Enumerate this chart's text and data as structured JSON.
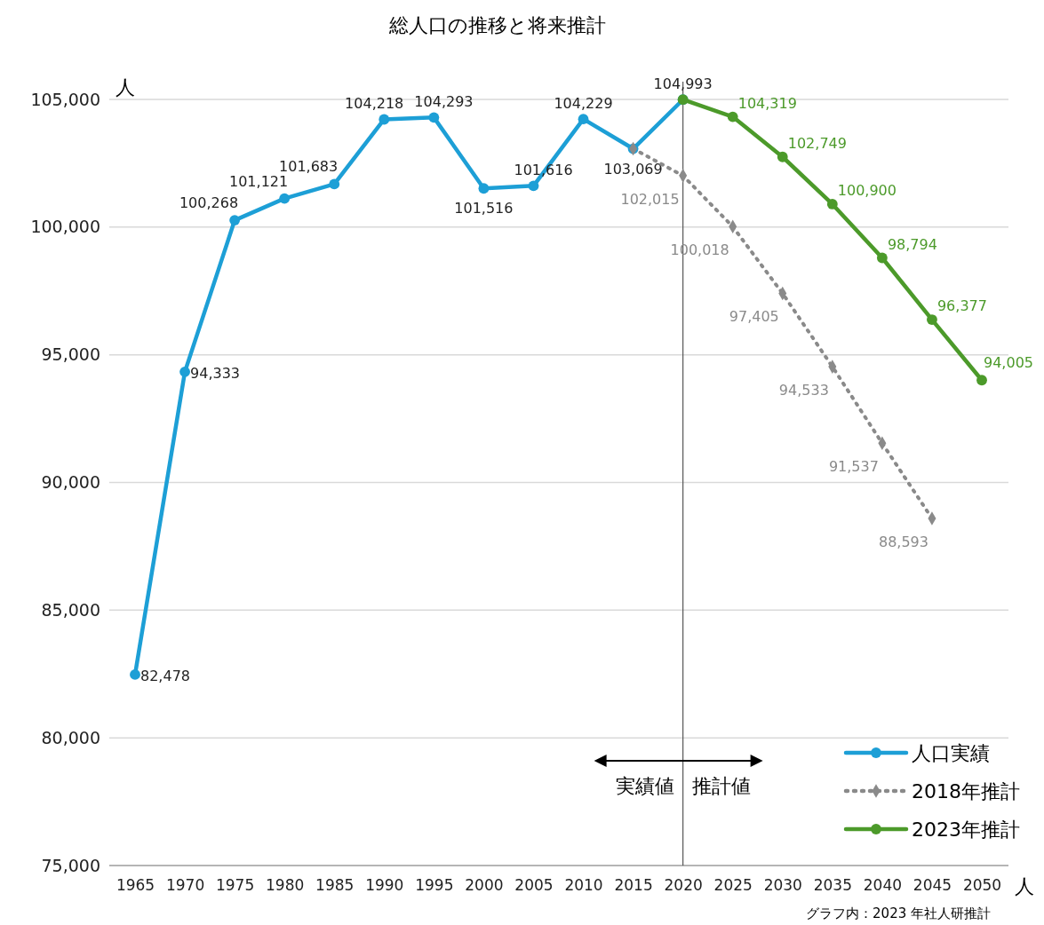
{
  "chart_data": {
    "type": "line",
    "title": "総人口の推移と将来推計",
    "ylabel": "人",
    "xlabel": "人",
    "categories": [
      "1965",
      "1970",
      "1975",
      "1980",
      "1985",
      "1990",
      "1995",
      "2000",
      "2005",
      "2010",
      "2015",
      "2020",
      "2025",
      "2030",
      "2035",
      "2040",
      "2045",
      "2050"
    ],
    "ylim": [
      75000,
      105000
    ],
    "yticks": [
      {
        "value": 75000,
        "label": "75,000"
      },
      {
        "value": 80000,
        "label": "80,000"
      },
      {
        "value": 85000,
        "label": "85,000"
      },
      {
        "value": 90000,
        "label": "90,000"
      },
      {
        "value": 95000,
        "label": "95,000"
      },
      {
        "value": 100000,
        "label": "100,000"
      },
      {
        "value": 105000,
        "label": "105,000"
      }
    ],
    "grid": "y",
    "legend": "bottom right",
    "series": [
      {
        "name": "人口実績",
        "color": "#1d9fd6",
        "marker": "circle",
        "line_style": "solid",
        "values": [
          82478,
          94333,
          100268,
          101121,
          101683,
          104218,
          104293,
          101516,
          101616,
          104229,
          103069,
          104993,
          null,
          null,
          null,
          null,
          null,
          null
        ],
        "value_labels": [
          "82,478",
          "94,333",
          "100,268",
          "101,121",
          "101,683",
          "104,218",
          "104,293",
          "101,516",
          "101,616",
          "104,229",
          "103,069",
          "104,993",
          null,
          null,
          null,
          null,
          null,
          null
        ]
      },
      {
        "name": "2018年推計",
        "color": "#8a8a8a",
        "marker": "diamond",
        "line_style": "dotted",
        "values": [
          null,
          null,
          null,
          null,
          null,
          null,
          null,
          null,
          null,
          null,
          103069,
          102015,
          100018,
          97405,
          94533,
          91537,
          88593,
          null
        ],
        "value_labels": [
          null,
          null,
          null,
          null,
          null,
          null,
          null,
          null,
          null,
          null,
          null,
          "102,015",
          "100,018",
          "97,405",
          "94,533",
          "91,537",
          "88,593",
          null
        ]
      },
      {
        "name": "2023年推計",
        "color": "#4c9a2a",
        "marker": "circle",
        "line_style": "solid",
        "values": [
          null,
          null,
          null,
          null,
          null,
          null,
          null,
          null,
          null,
          null,
          null,
          104993,
          104319,
          102749,
          100900,
          98794,
          96377,
          94005
        ],
        "value_labels": [
          null,
          null,
          null,
          null,
          null,
          null,
          null,
          null,
          null,
          null,
          null,
          null,
          "104,319",
          "102,749",
          "100,900",
          "98,794",
          "96,377",
          "94,005"
        ]
      }
    ],
    "ref_lines": [
      {
        "axis": "x",
        "value": "2020",
        "color": "#555555"
      }
    ],
    "annotations": [
      "実績値",
      "推計値",
      "グラフ内：2023 年社人研推計"
    ]
  }
}
